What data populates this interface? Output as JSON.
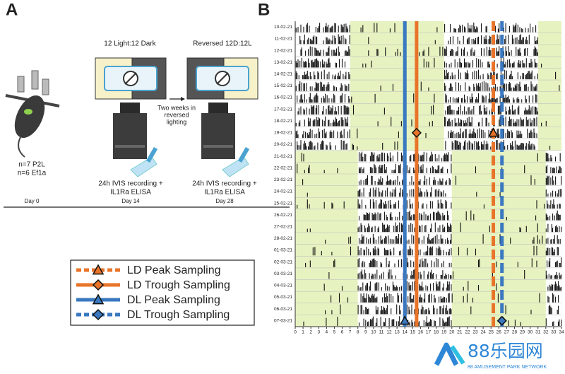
{
  "panel_a": {
    "label": "A",
    "condition_1": "12 Light:12 Dark",
    "condition_2": "Reversed 12D:12L",
    "transition": [
      "Two weeks in",
      "reversed",
      "lighting"
    ],
    "groups": [
      "n=7 P2L",
      "n=6 Ef1a"
    ],
    "recording": [
      "24h IVIS recording +",
      "IL1Ra ELISA"
    ],
    "days": [
      "Day 0",
      "Day 14",
      "Day 28"
    ]
  },
  "chart_data": {
    "type": "actogram",
    "label": "B",
    "rows": [
      "10-02-21",
      "11-02-21",
      "12-02-21",
      "13-02-21",
      "14-02-21",
      "15-02-21",
      "16-02-21",
      "17-02-21",
      "18-02-21",
      "19-02-21",
      "20-02-21",
      "21-02-21",
      "22-02-21",
      "23-02-21",
      "24-02-21",
      "25-02-21",
      "26-02-21",
      "27-02-21",
      "28-02-21",
      "01-03-21",
      "02-03-21",
      "03-03-21",
      "04-03-21",
      "05-03-21",
      "06-03-21",
      "07-03-21"
    ],
    "xlim": [
      0,
      34
    ],
    "xticks": [
      0,
      1,
      2,
      3,
      4,
      5,
      6,
      7,
      8,
      9,
      10,
      11,
      12,
      13,
      14,
      15,
      16,
      17,
      18,
      19,
      20,
      21,
      22,
      23,
      24,
      25,
      26,
      27,
      28,
      29,
      30,
      31,
      32,
      33,
      34
    ],
    "light_color": "#e6f2c0",
    "light_phases": [
      {
        "from_row": "10-02-21",
        "to_row": "20-02-21",
        "hours": [
          [
            7,
            19
          ],
          [
            31,
            34
          ]
        ]
      },
      {
        "from_row": "21-02-21",
        "to_row": "07-03-21",
        "hours": [
          [
            0,
            8
          ],
          [
            20,
            32
          ]
        ]
      }
    ],
    "sampling_lines": [
      {
        "name": "LD Peak Sampling",
        "color": "#e8742a",
        "style": "dashed",
        "hour": 25.3,
        "marker": "triangle",
        "marker_row": "19-02-21"
      },
      {
        "name": "LD Trough Sampling",
        "color": "#e8742a",
        "style": "solid",
        "hour": 15.5,
        "marker": "diamond",
        "marker_row": "19-02-21"
      },
      {
        "name": "DL Peak Sampling",
        "color": "#3a78c0",
        "style": "solid",
        "hour": 14,
        "marker": "triangle",
        "marker_row": "07-03-21"
      },
      {
        "name": "DL Trough Sampling",
        "color": "#3a78c0",
        "style": "dashed",
        "hour": 26.4,
        "marker": "diamond",
        "marker_row": "07-03-21"
      }
    ]
  },
  "watermark": {
    "title": "88乐园网",
    "subtitle": "88 AMUSEMENT PARK NETWORK"
  }
}
